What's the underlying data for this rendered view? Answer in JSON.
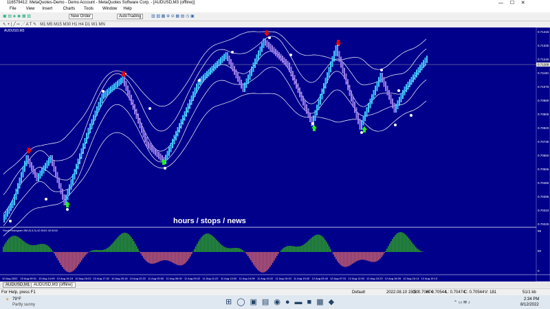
{
  "window": {
    "title": "116579412: MetaQuotes-Demo - Demo Account - MetaQuotes Software Corp. - [AUDUSD,M3 (offline)]",
    "menu": [
      "File",
      "View",
      "Insert",
      "Charts",
      "Tools",
      "Window",
      "Help"
    ],
    "toolbar": {
      "new_order": "New Order",
      "autotrading": "AutoTrading"
    }
  },
  "chart": {
    "symbol_label": "AUDUSD,M3",
    "overlay_text": "hours / stops / news",
    "price_labels": [
      "0.71415",
      "0.71330",
      "0.71245",
      "0.71160",
      "0.71075",
      "0.70990",
      "0.70905",
      "0.70820",
      "0.70735",
      "0.70650",
      "0.70565",
      "0.70480",
      "0.70395",
      "0.70310",
      "0.70225"
    ],
    "current_price": "0.71268",
    "indicator_label": "Stoch Histogram 5M (5,3,3) 42.5102 42.5102",
    "indicator_labels": [
      "98",
      "50",
      "0"
    ],
    "time_labels": [
      "10 Aug 2022",
      "10 Aug 09:01",
      "10 Aug 14:09",
      "10 Aug 15:18",
      "10 Aug 16:22",
      "10 Aug 17:32",
      "10 Aug 20:16",
      "10 Aug 22:22",
      "11 Aug 00:00",
      "11 Aug 06:00",
      "11 Aug 09:22",
      "11 Aug 11:22",
      "11 Aug 13:00",
      "11 Aug 14:59",
      "11 Aug 15:22",
      "11 Aug 16:43",
      "11 Aug 19:20",
      "12 Aug 03:40",
      "12 Aug 07:31",
      "12 Aug 12:00",
      "12 Aug 15:23",
      "12 Aug 16:05",
      "12 Aug 16:14",
      "12 Aug 19:13"
    ]
  },
  "tabs": [
    "AUDUSD,M1",
    "AUDUSD,M3 (offline)"
  ],
  "status": {
    "help": "For Help, press F1",
    "profile": "Default",
    "time": "2022.08.10 15:50",
    "open": "O: 0.70474",
    "high": "H: 0.70544",
    "low": "L: 0.70474",
    "close": "C: 0.70544",
    "volume": "V: 181",
    "traffic": "51/1 kb"
  },
  "taskbar": {
    "temperature": "79°F",
    "weather": "Partly sunny",
    "clock": "2:34 PM",
    "date": "8/12/2022"
  }
}
